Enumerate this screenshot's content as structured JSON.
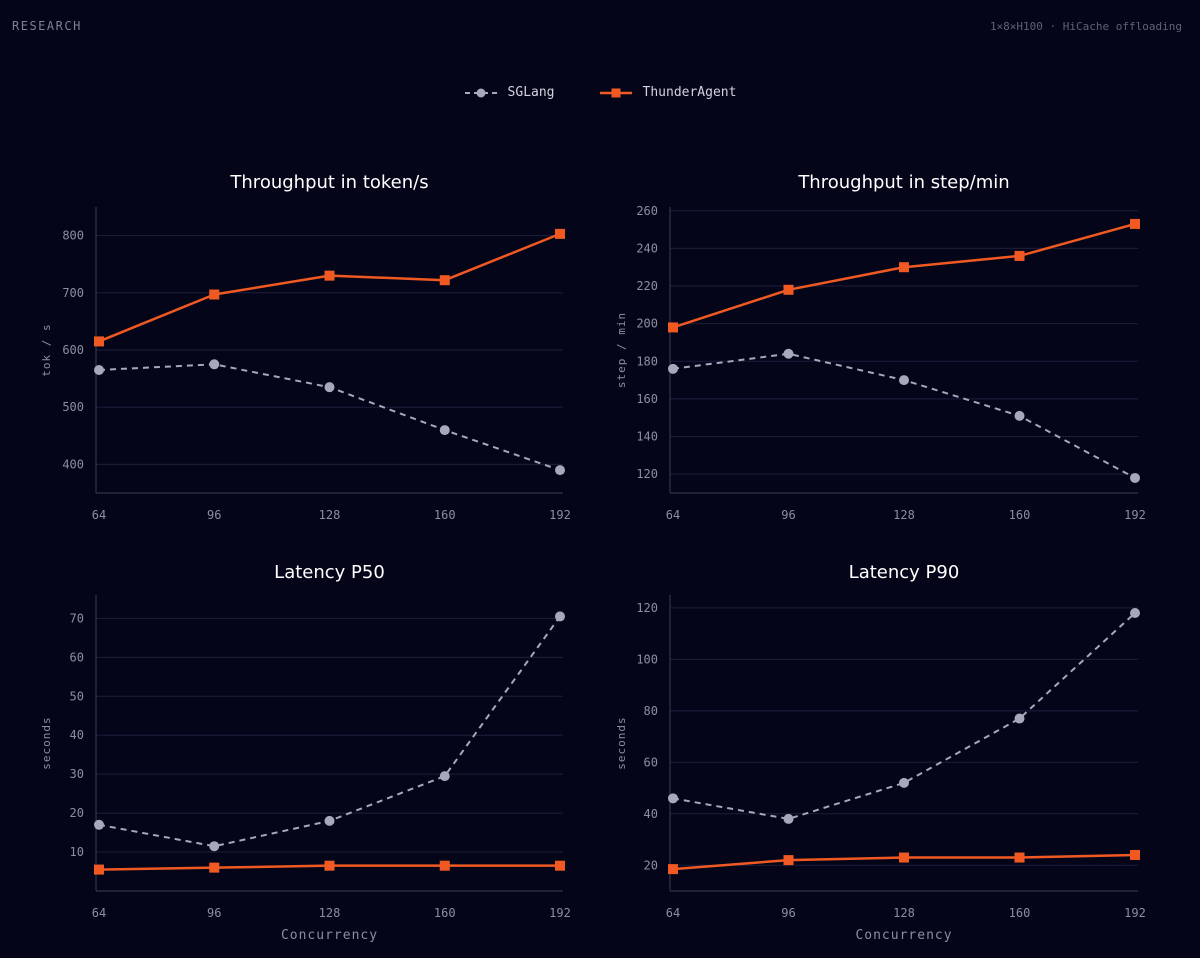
{
  "header": {
    "tag": "RESEARCH",
    "setup": "1×8×H100 · HiCache offloading"
  },
  "legend": [
    {
      "name": "SGLang",
      "color": "#a6a8bb",
      "marker": "circle",
      "dash": true
    },
    {
      "name": "ThunderAgent",
      "color": "#f05a22",
      "marker": "square",
      "dash": false
    }
  ],
  "chart_data": [
    {
      "type": "line",
      "title": "Throughput in token/s",
      "xlabel": "",
      "ylabel": "tok / s",
      "x": [
        64,
        96,
        128,
        160,
        192
      ],
      "ylim": [
        350,
        850
      ],
      "yticks": [
        400,
        500,
        600,
        700,
        800
      ],
      "series": [
        {
          "name": "SGLang",
          "values": [
            565,
            575,
            535,
            460,
            390
          ]
        },
        {
          "name": "ThunderAgent",
          "values": [
            615,
            697,
            730,
            722,
            803
          ]
        }
      ]
    },
    {
      "type": "line",
      "title": "Throughput in step/min",
      "xlabel": "",
      "ylabel": "step / min",
      "x": [
        64,
        96,
        128,
        160,
        192
      ],
      "ylim": [
        110,
        262
      ],
      "yticks": [
        120,
        140,
        160,
        180,
        200,
        220,
        240,
        260
      ],
      "series": [
        {
          "name": "SGLang",
          "values": [
            176,
            184,
            170,
            151,
            118
          ]
        },
        {
          "name": "ThunderAgent",
          "values": [
            198,
            218,
            230,
            236,
            253
          ]
        }
      ]
    },
    {
      "type": "line",
      "title": "Latency P50",
      "xlabel": "Concurrency",
      "ylabel": "seconds",
      "x": [
        64,
        96,
        128,
        160,
        192
      ],
      "ylim": [
        0,
        76
      ],
      "yticks": [
        10,
        20,
        30,
        40,
        50,
        60,
        70
      ],
      "series": [
        {
          "name": "SGLang",
          "values": [
            17,
            11.5,
            18,
            29.5,
            70.5
          ]
        },
        {
          "name": "ThunderAgent",
          "values": [
            5.5,
            6,
            6.5,
            6.5,
            6.5
          ]
        }
      ]
    },
    {
      "type": "line",
      "title": "Latency P90",
      "xlabel": "Concurrency",
      "ylabel": "seconds",
      "x": [
        64,
        96,
        128,
        160,
        192
      ],
      "ylim": [
        10,
        125
      ],
      "yticks": [
        20,
        40,
        60,
        80,
        100,
        120
      ],
      "series": [
        {
          "name": "SGLang",
          "values": [
            46,
            38,
            52,
            77,
            118
          ]
        },
        {
          "name": "ThunderAgent",
          "values": [
            18.5,
            22,
            23,
            23,
            24
          ]
        }
      ]
    }
  ]
}
